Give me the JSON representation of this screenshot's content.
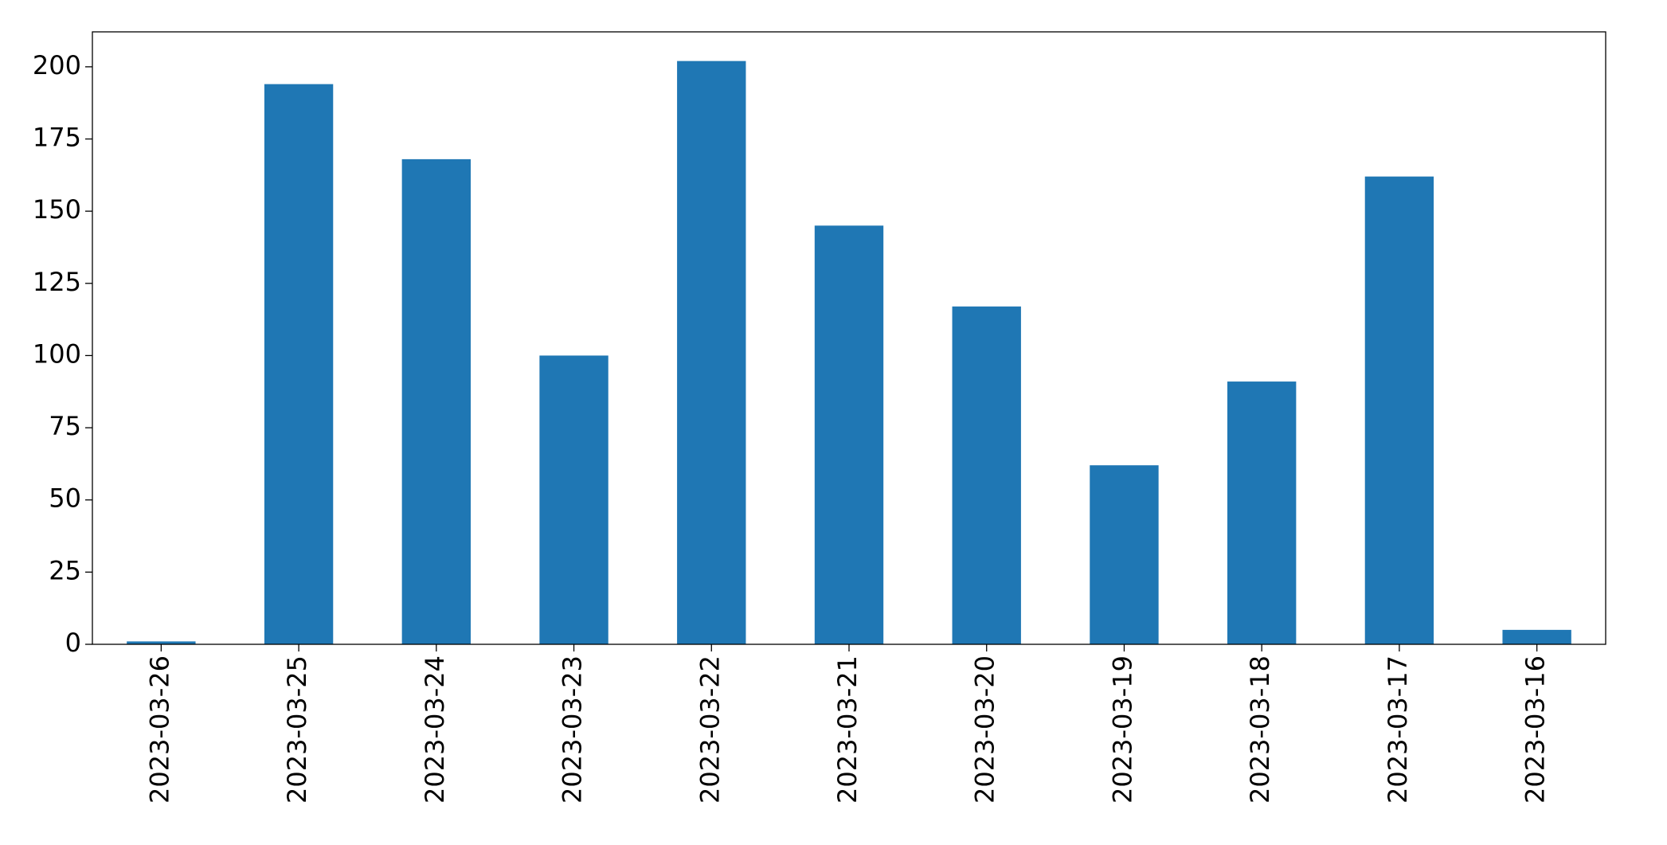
{
  "chart_data": {
    "type": "bar",
    "categories": [
      "2023-03-26",
      "2023-03-25",
      "2023-03-24",
      "2023-03-23",
      "2023-03-22",
      "2023-03-21",
      "2023-03-20",
      "2023-03-19",
      "2023-03-18",
      "2023-03-17",
      "2023-03-16"
    ],
    "values": [
      1,
      194,
      168,
      100,
      202,
      145,
      117,
      62,
      91,
      162,
      5
    ],
    "color": "#1f77b4",
    "ylim": [
      0,
      212.1
    ],
    "yticks": [
      0,
      25,
      50,
      75,
      100,
      125,
      150,
      175,
      200
    ],
    "grid": false
  }
}
